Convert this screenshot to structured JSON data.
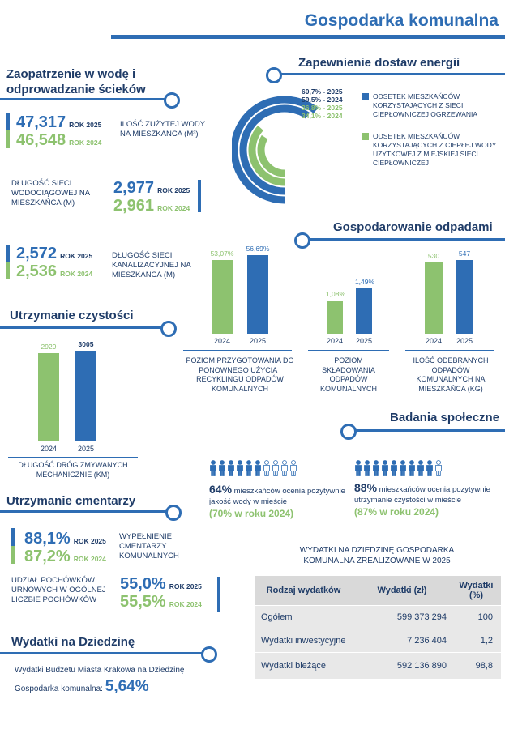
{
  "header": {
    "title": "Gospodarka komunalna"
  },
  "water": {
    "title_line1": "Zaopatrzenie w wodę i",
    "title_line2": "odprowadzanie ścieków",
    "consumption": {
      "v2025": "47,317",
      "y2025": "ROK 2025",
      "v2024": "46,548",
      "y2024": "ROK 2024",
      "label": "ILOŚĆ ZUŻYTEJ WODY NA MIESZKAŃCA (m³)"
    },
    "water_network": {
      "label": "DŁUGOŚĆ SIECI WODOCIĄGOWEJ NA MIESZKAŃCA (m)",
      "v2025": "2,977",
      "y2025": "ROK 2025",
      "v2024": "2,961",
      "y2024": "ROK 2024"
    },
    "sewer_network": {
      "v2025": "2,572",
      "y2025": "ROK 2025",
      "v2024": "2,536",
      "y2024": "ROK 2024",
      "label": "DŁUGOŚĆ SIECI KANALIZACYJNEJ NA MIESZKAŃCA (m)"
    }
  },
  "energy": {
    "title": "Zapewnienie dostaw energii",
    "rings": [
      {
        "label": "60,7% - 2025",
        "value": 60.7,
        "color": "#2e6db4"
      },
      {
        "label": "59,5% - 2024",
        "value": 59.5,
        "color": "#2e6db4"
      },
      {
        "label": "36,8% - 2025",
        "value": 36.8,
        "color": "#8dc26f"
      },
      {
        "label": "34,1% - 2024",
        "value": 34.1,
        "color": "#8dc26f"
      }
    ],
    "legend": [
      {
        "text": "ODSETEK MIESZKAŃCÓW KORZYSTAJĄCYCH Z SIECI CIEPŁOWNICZEJ OGRZEWANIA",
        "color": "#2e6db4"
      },
      {
        "text": "ODSETEK MIESZKAŃCÓW KORZYSTAJĄCYCH Z CIEPŁEJ WODY UŻYTKOWEJ Z MIEJSKIEJ SIECI CIEPŁOWNICZEJ",
        "color": "#8dc26f"
      }
    ]
  },
  "waste": {
    "title": "Gospodarowanie odpadami",
    "recycling": {
      "v2024": "53,07%",
      "v2025": "56,69%",
      "n2024": 53.07,
      "n2025": 56.69,
      "x2024": "2024",
      "x2025": "2025",
      "caption": "POZIOM PRZYGOTOWANIA DO PONOWNEGO UŻYCIA I RECYKLINGU ODPADÓW KOMUNALNYCH"
    },
    "landfill": {
      "v2024": "1,08%",
      "v2025": "1,49%",
      "n2024": 1.08,
      "n2025": 1.49,
      "x2024": "2024",
      "x2025": "2025",
      "caption": "POZIOM SKŁADOWANIA ODPADÓW KOMUNALNYCH"
    },
    "collected": {
      "v2024": "530",
      "v2025": "547",
      "n2024": 530,
      "n2025": 547,
      "x2024": "2024",
      "x2025": "2025",
      "caption": "ILOŚĆ ODEBRANYCH ODPADÓW KOMUNALNYCH NA MIESZKAŃCA (kg)"
    }
  },
  "cleanliness": {
    "title": "Utrzymanie czystości",
    "v2024": "2929",
    "v2025": "3005",
    "n2024": 2929,
    "n2025": 3005,
    "x2024": "2024",
    "x2025": "2025",
    "caption": "DŁUGOŚĆ DRÓG ZMYWANYCH MECHANICZNIE (km)"
  },
  "survey": {
    "title": "Badania społeczne",
    "water": {
      "pct": "64%",
      "text": "mieszkańców ocenia pozytywnie jakość wody w mieście",
      "prev": "(70% w roku 2024)",
      "share": 0.64
    },
    "clean": {
      "pct": "88%",
      "text": "mieszkańców ocenia pozytywnie utrzymanie czystości w mieście",
      "prev": "(87% w roku 2024)",
      "share": 0.88
    }
  },
  "cemetery": {
    "title": "Utrzymanie cmentarzy",
    "filled": {
      "v2025": "88,1%",
      "y2025": "ROK 2025",
      "v2024": "87,2%",
      "y2024": "ROK 2024",
      "label": "WYPEŁNIENIE CMENTARZY KOMUNALNYCH"
    },
    "urn": {
      "label": "UDZIAŁ POCHÓWKÓW URNOWYCH W OGÓLNEJ LICZBIE POCHÓWKÓW",
      "v2025": "55,0%",
      "y2025": "ROK 2025",
      "v2024": "55,5%",
      "y2024": "ROK 2024"
    }
  },
  "expenses": {
    "title": "Wydatki na Dziedzinę",
    "line1": "Wydatki Budżetu Miasta Krakowa na Dziedzinę",
    "line2": "Gospodarka komunalna:",
    "value": "5,64%"
  },
  "table": {
    "title_line1": "WYDATKI NA DZIEDZINĘ GOSPODARKA",
    "title_line2": "KOMUNALNA ZREALIZOWANE W 2025",
    "headers": [
      "Rodzaj wydatków",
      "Wydatki (zł)",
      "Wydatki (%)"
    ],
    "rows": [
      [
        "Ogółem",
        "599 373 294",
        "100"
      ],
      [
        "Wydatki inwestycyjne",
        "7 236 404",
        "1,2"
      ],
      [
        "Wydatki bieżące",
        "592 136 890",
        "98,8"
      ]
    ]
  }
}
